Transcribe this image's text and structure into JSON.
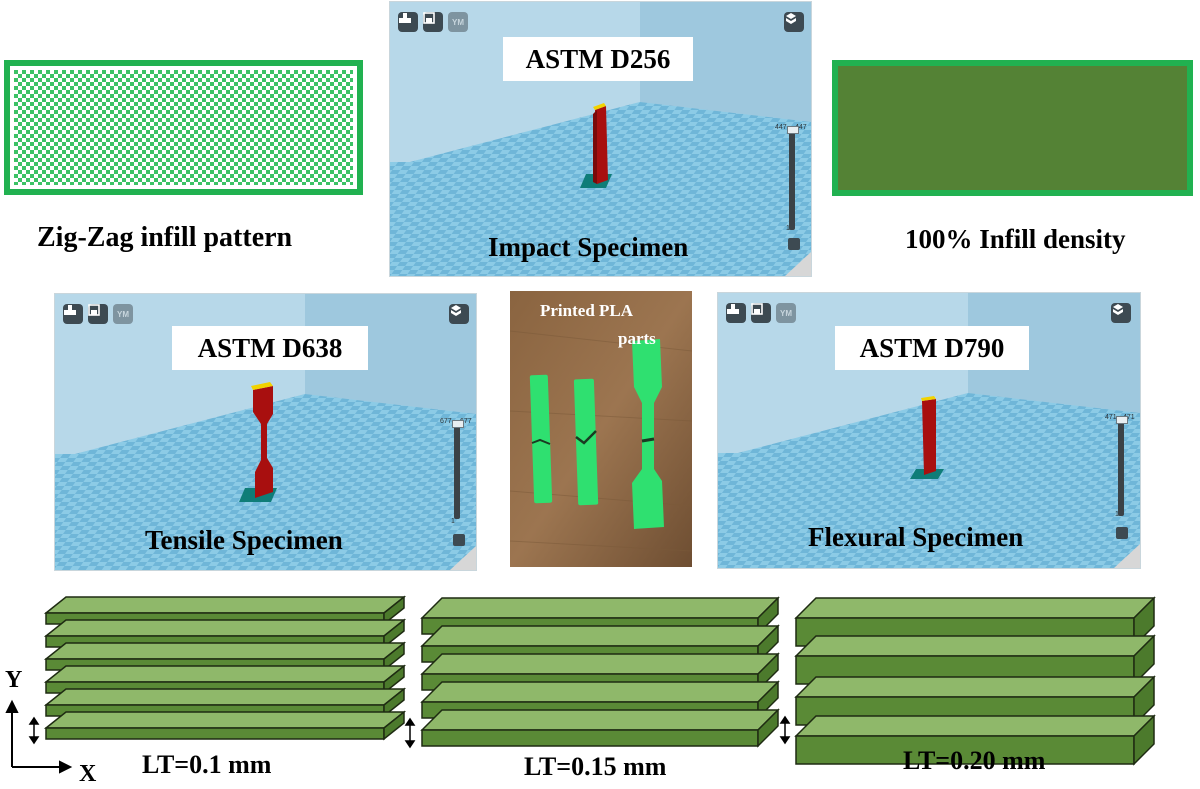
{
  "infill_pattern": {
    "caption": "Zig-Zag infill pattern"
  },
  "infill_density": {
    "caption": "100% Infill density"
  },
  "impact": {
    "standard": "ASTM D256",
    "caption": "Impact Specimen",
    "slider_left": "447",
    "slider_right": "447",
    "slider_bottom": "1",
    "toolbar_badge": "YM"
  },
  "tensile": {
    "standard": "ASTM D638",
    "caption": "Tensile Specimen",
    "slider_left": "677",
    "slider_right": "677",
    "slider_bottom": "1",
    "toolbar_badge": "YM"
  },
  "flexural": {
    "standard": "ASTM D790",
    "caption": "Flexural Specimen",
    "slider_left": "471",
    "slider_right": "471",
    "slider_bottom": "1",
    "toolbar_badge": "YM"
  },
  "photo": {
    "caption_line1": "Printed PLA",
    "caption_line2": "parts"
  },
  "layers": {
    "lt1": "LT=0.1 mm",
    "lt2": "LT=0.15 mm",
    "lt3": "LT=0.20 mm",
    "axis_y": "Y",
    "axis_x": "X"
  },
  "colors": {
    "green_fill": "#548235",
    "green_border": "#2fb35a",
    "specimen_red": "#a80f0f",
    "plate_blue": "#7fc4e3",
    "layer_green": "#70a04a"
  }
}
